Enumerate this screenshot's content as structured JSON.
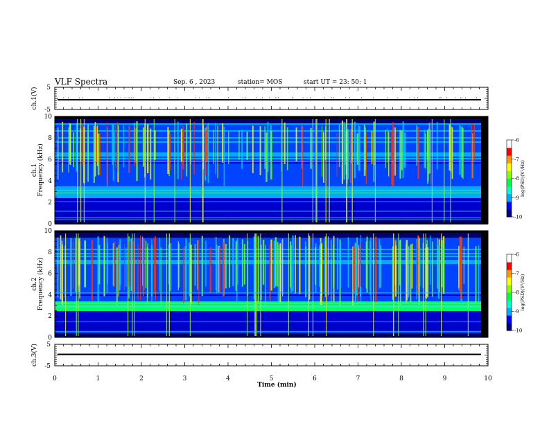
{
  "header": {
    "title": "VLF Spectra",
    "date": "Sep. 6 , 2023",
    "station": "station= MOS",
    "start": "start  UT  =  23: 50: 1"
  },
  "chart_data": [
    {
      "type": "line",
      "ylabel": "ch.1(V)",
      "yticks": [
        "5",
        "-5"
      ],
      "ylim": [
        -5,
        5
      ],
      "series": [
        {
          "values": [
            0,
            0
          ]
        }
      ]
    },
    {
      "type": "heatmap",
      "ylabel": "ch.1\nFrequency (kHz)",
      "ylabel_lines": [
        "ch.1",
        "Frequency (kHz)"
      ],
      "yticks": [
        "0",
        "2",
        "4",
        "6",
        "8",
        "10"
      ],
      "ylim": [
        0,
        10
      ],
      "colorbar": {
        "label": "log(PSD)(V²/Hz)",
        "ticks": [
          "-6",
          "-7",
          "-8",
          "-9",
          "-10"
        ],
        "range": [
          -10,
          -6
        ],
        "colors": [
          "#000080",
          "#0000ff",
          "#00bfff",
          "#00ff7f",
          "#7fff00",
          "#ffff00",
          "#ff7f00",
          "#ff0000",
          "#ffffff"
        ]
      }
    },
    {
      "type": "heatmap",
      "ylabel": "ch.2\nFrequency (kHz)",
      "ylabel_lines": [
        "ch.2",
        "Frequency (kHz)"
      ],
      "yticks": [
        "0",
        "2",
        "4",
        "6",
        "8",
        "10"
      ],
      "ylim": [
        0,
        10
      ],
      "colorbar": {
        "label": "log(PSD)(V²/Hz)",
        "ticks": [
          "-6",
          "-7",
          "-8",
          "-9",
          "-10"
        ],
        "range": [
          -10,
          -6
        ],
        "colors": [
          "#000080",
          "#0000ff",
          "#00bfff",
          "#00ff7f",
          "#7fff00",
          "#ffff00",
          "#ff7f00",
          "#ff0000",
          "#ffffff"
        ]
      }
    },
    {
      "type": "line",
      "ylabel": "ch.3(V)",
      "yticks": [
        "5",
        "-5"
      ],
      "ylim": [
        -5,
        5
      ],
      "series": [
        {
          "values": [
            0,
            0
          ]
        }
      ]
    }
  ],
  "xaxis": {
    "label": "Time  (min)",
    "ticks": [
      "0",
      "1",
      "2",
      "3",
      "4",
      "5",
      "6",
      "7",
      "8",
      "9",
      "10"
    ],
    "xlim": [
      0,
      10
    ]
  }
}
